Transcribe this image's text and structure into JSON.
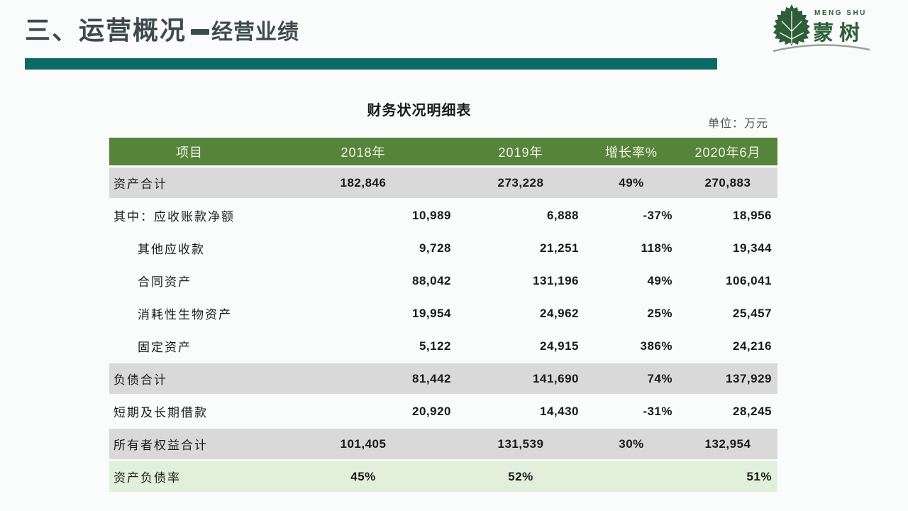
{
  "slide": {
    "header": {
      "title_part1": "三、运营概况",
      "title_separator": "－",
      "title_part2": "经营业绩"
    },
    "logo": {
      "name_en": "MENG SHU",
      "name_cn": "蒙树"
    },
    "table": {
      "title": "财务状况明细表",
      "unit_label": "单位：万元",
      "columns": [
        "项目",
        "2018年",
        "2019年",
        "增长率%",
        "2020年6月"
      ],
      "rows": [
        {
          "label": "资产合计",
          "indent": false,
          "emphasis": "total",
          "align": "center",
          "values": [
            "182,846",
            "273,228",
            "49%",
            "270,883"
          ]
        },
        {
          "label": "其中：应收账款净额",
          "indent": false,
          "emphasis": "none",
          "align": "right",
          "values": [
            "10,989",
            "6,888",
            "-37%",
            "18,956"
          ]
        },
        {
          "label": "其他应收款",
          "indent": true,
          "emphasis": "none",
          "align": "right",
          "values": [
            "9,728",
            "21,251",
            "118%",
            "19,344"
          ]
        },
        {
          "label": "合同资产",
          "indent": true,
          "emphasis": "none",
          "align": "right",
          "values": [
            "88,042",
            "131,196",
            "49%",
            "106,041"
          ]
        },
        {
          "label": "消耗性生物资产",
          "indent": true,
          "emphasis": "none",
          "align": "right",
          "values": [
            "19,954",
            "24,962",
            "25%",
            "25,457"
          ]
        },
        {
          "label": "固定资产",
          "indent": true,
          "emphasis": "none",
          "align": "right",
          "values": [
            "5,122",
            "24,915",
            "386%",
            "24,216"
          ]
        },
        {
          "label": "负债合计",
          "indent": false,
          "emphasis": "total",
          "align": "right",
          "values": [
            "81,442",
            "141,690",
            "74%",
            "137,929"
          ]
        },
        {
          "label": "短期及长期借款",
          "indent": false,
          "emphasis": "none",
          "align": "right",
          "values": [
            "20,920",
            "14,430",
            "-31%",
            "28,245"
          ]
        },
        {
          "label": "所有者权益合计",
          "indent": false,
          "emphasis": "total",
          "align": "center",
          "values": [
            "101,405",
            "131,539",
            "30%",
            "132,954"
          ]
        },
        {
          "label": "资产负债率",
          "indent": false,
          "emphasis": "ratio",
          "align": "center",
          "cell_aligns": [
            "center",
            "center",
            "center",
            "right"
          ],
          "values": [
            "45%",
            "52%",
            "",
            "51%"
          ]
        }
      ]
    },
    "colors": {
      "header_green": "#55843a",
      "total_row_gray": "#d9d9d9",
      "ratio_row_green": "#e2efda",
      "accent_teal": "#0c6a64",
      "logo_green": "#2d5e38",
      "title_text": "#3f4a4c",
      "header_text": "#f3f6e4"
    }
  }
}
